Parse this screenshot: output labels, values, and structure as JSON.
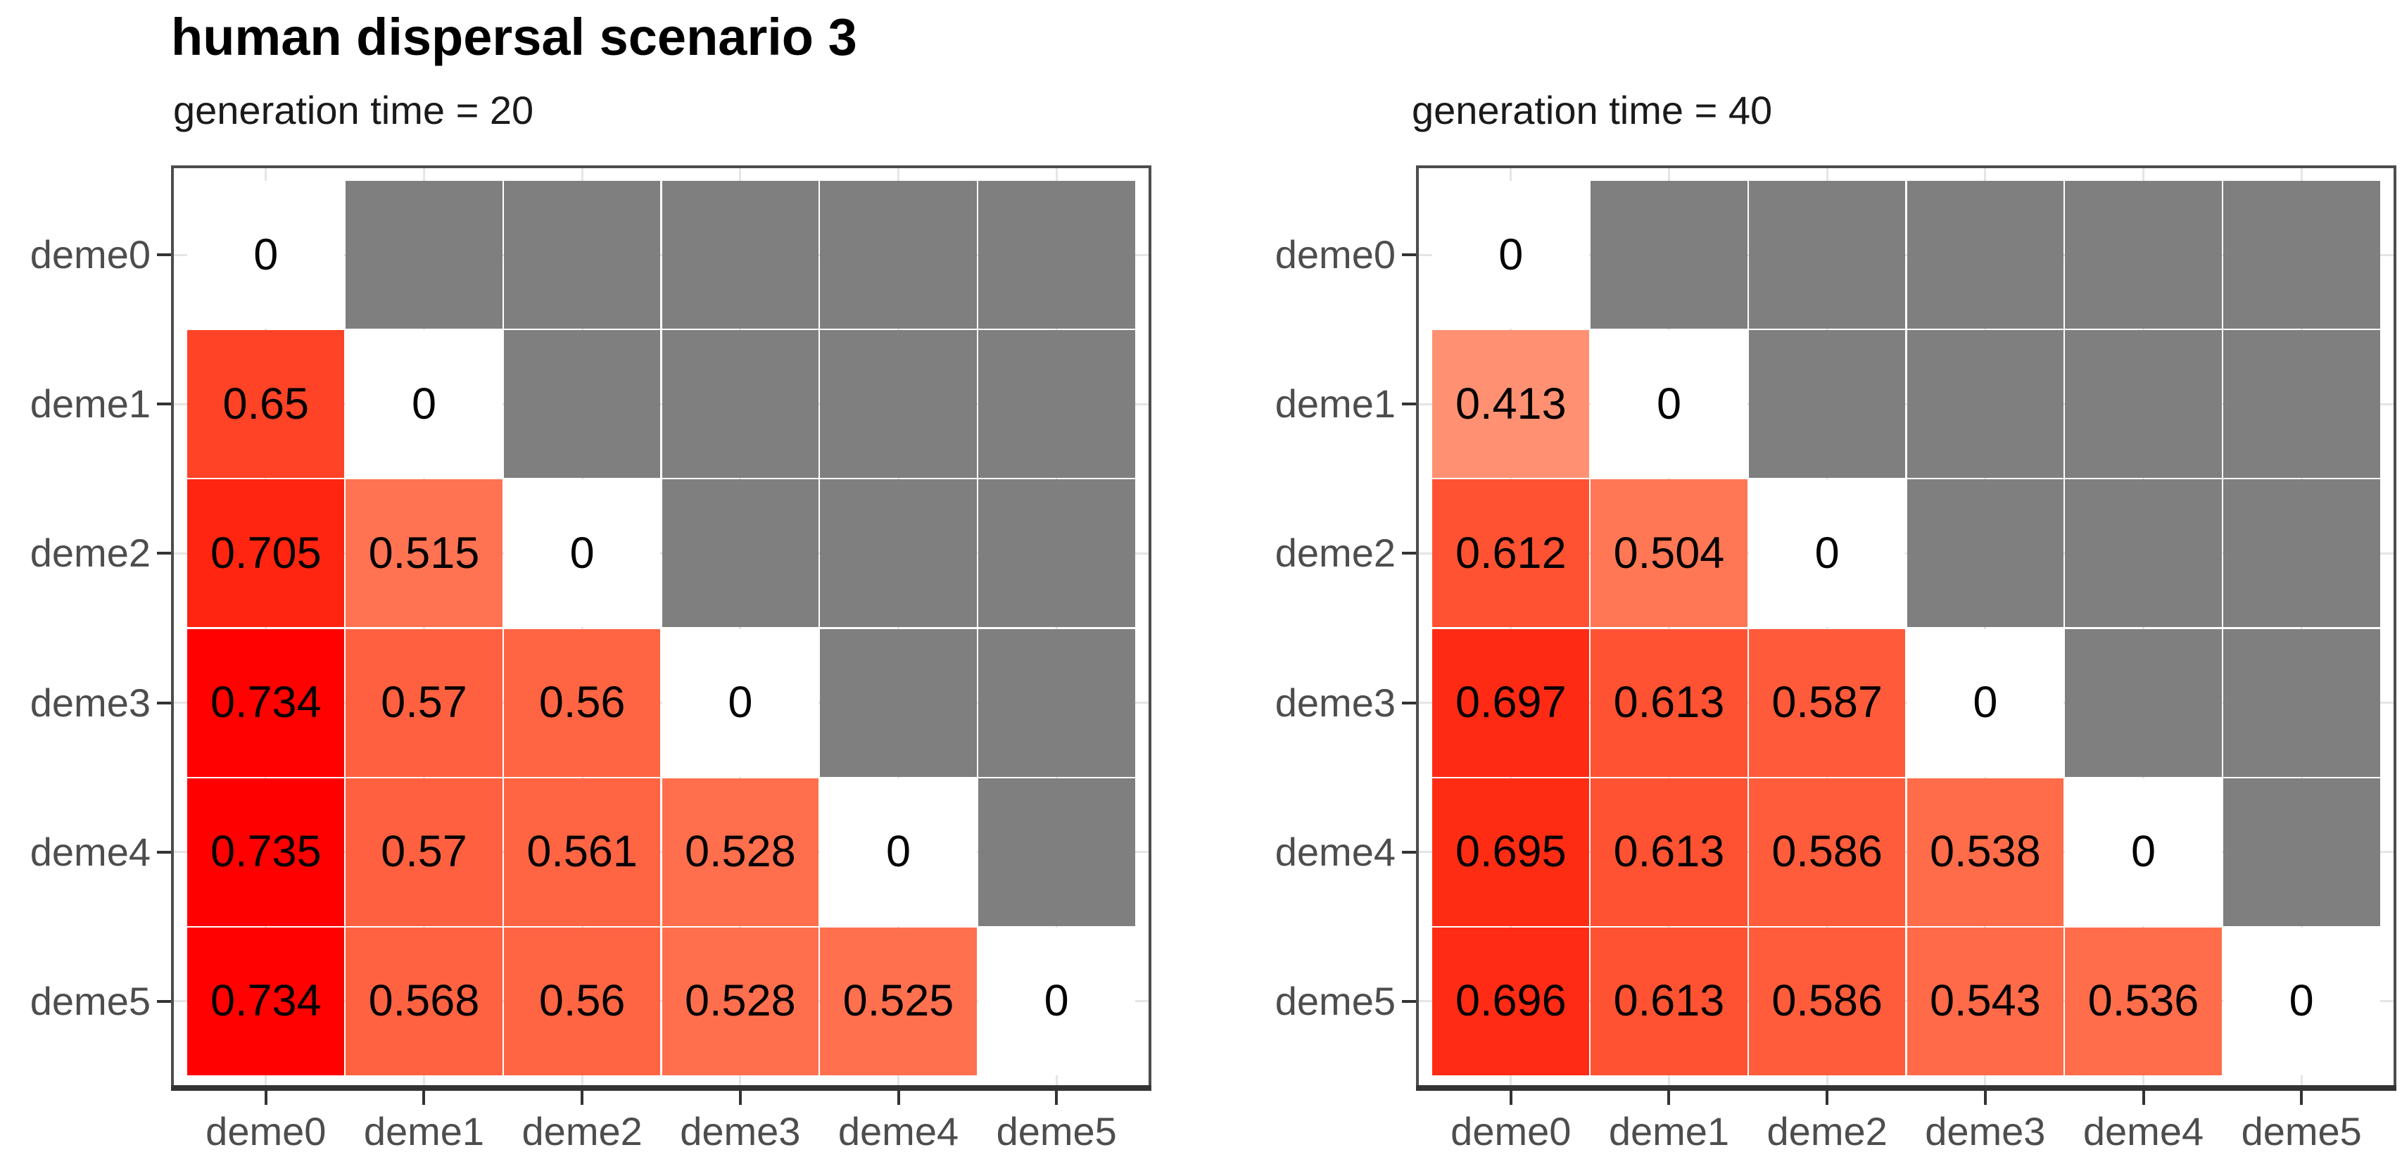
{
  "title": "human dispersal scenario 3",
  "chart_data": [
    {
      "type": "heatmap",
      "subtitle": "generation time = 20",
      "x_categories": [
        "deme0",
        "deme1",
        "deme2",
        "deme3",
        "deme4",
        "deme5"
      ],
      "y_categories": [
        "deme0",
        "deme1",
        "deme2",
        "deme3",
        "deme4",
        "deme5"
      ],
      "cells": [
        [
          "0",
          null,
          null,
          null,
          null,
          null
        ],
        [
          "0.65",
          "0",
          null,
          null,
          null,
          null
        ],
        [
          "0.705",
          "0.515",
          "0",
          null,
          null,
          null
        ],
        [
          "0.734",
          "0.57",
          "0.56",
          "0",
          null,
          null
        ],
        [
          "0.735",
          "0.57",
          "0.561",
          "0.528",
          "0",
          null
        ],
        [
          "0.734",
          "0.568",
          "0.56",
          "0.528",
          "0.525",
          "0"
        ]
      ],
      "fill_scale": {
        "low": "#FFFFFF",
        "high": "#FF0000",
        "domain": [
          0,
          0.735
        ],
        "na_color": "#7F7F7F"
      },
      "grid": "on",
      "legend": "none"
    },
    {
      "type": "heatmap",
      "subtitle": "generation time = 40",
      "x_categories": [
        "deme0",
        "deme1",
        "deme2",
        "deme3",
        "deme4",
        "deme5"
      ],
      "y_categories": [
        "deme0",
        "deme1",
        "deme2",
        "deme3",
        "deme4",
        "deme5"
      ],
      "cells": [
        [
          "0",
          null,
          null,
          null,
          null,
          null
        ],
        [
          "0.413",
          "0",
          null,
          null,
          null,
          null
        ],
        [
          "0.612",
          "0.504",
          "0",
          null,
          null,
          null
        ],
        [
          "0.697",
          "0.613",
          "0.587",
          "0",
          null,
          null
        ],
        [
          "0.695",
          "0.613",
          "0.586",
          "0.538",
          "0",
          null
        ],
        [
          "0.696",
          "0.613",
          "0.586",
          "0.543",
          "0.536",
          "0"
        ]
      ],
      "fill_scale": {
        "low": "#FFFFFF",
        "high": "#FF0000",
        "domain": [
          0,
          0.735
        ],
        "na_color": "#7F7F7F"
      },
      "grid": "on",
      "legend": "none"
    }
  ]
}
